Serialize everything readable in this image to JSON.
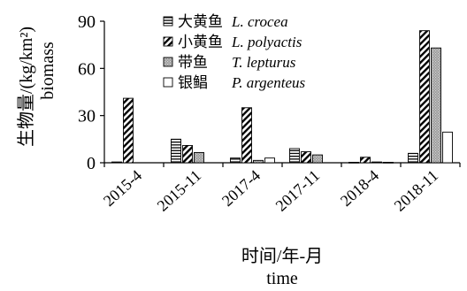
{
  "chart_data": {
    "type": "bar",
    "categories": [
      "2015-4",
      "2015-11",
      "2017-4",
      "2017-11",
      "2018-4",
      "2018-11"
    ],
    "series": [
      {
        "name_cn": "大黄鱼",
        "name": "L. crocea",
        "pattern": "horizontal-stripes",
        "values": [
          0.5,
          15,
          3,
          9,
          0.3,
          6
        ]
      },
      {
        "name_cn": "小黄鱼",
        "name": "L. polyactis",
        "pattern": "diagonal-stripes",
        "values": [
          41,
          11,
          35,
          7,
          3.5,
          84
        ]
      },
      {
        "name_cn": "带鱼",
        "name": "T. lepturus",
        "pattern": "dots-gray",
        "values": [
          0,
          6.5,
          1.5,
          5,
          0.5,
          73
        ]
      },
      {
        "name_cn": "银鲳",
        "name": "P. argenteus",
        "pattern": "white",
        "values": [
          0,
          0,
          3,
          0,
          0.3,
          19.5
        ]
      }
    ],
    "ylim": [
      0,
      90
    ],
    "yticks": [
      "0",
      "30",
      "60",
      "90"
    ],
    "ylabel_cn": "生物量/(kg/km²)",
    "ylabel_en": "biomass",
    "xlabel_cn": "时间/年-月",
    "xlabel_en": "time",
    "legend_position": "top-left"
  }
}
